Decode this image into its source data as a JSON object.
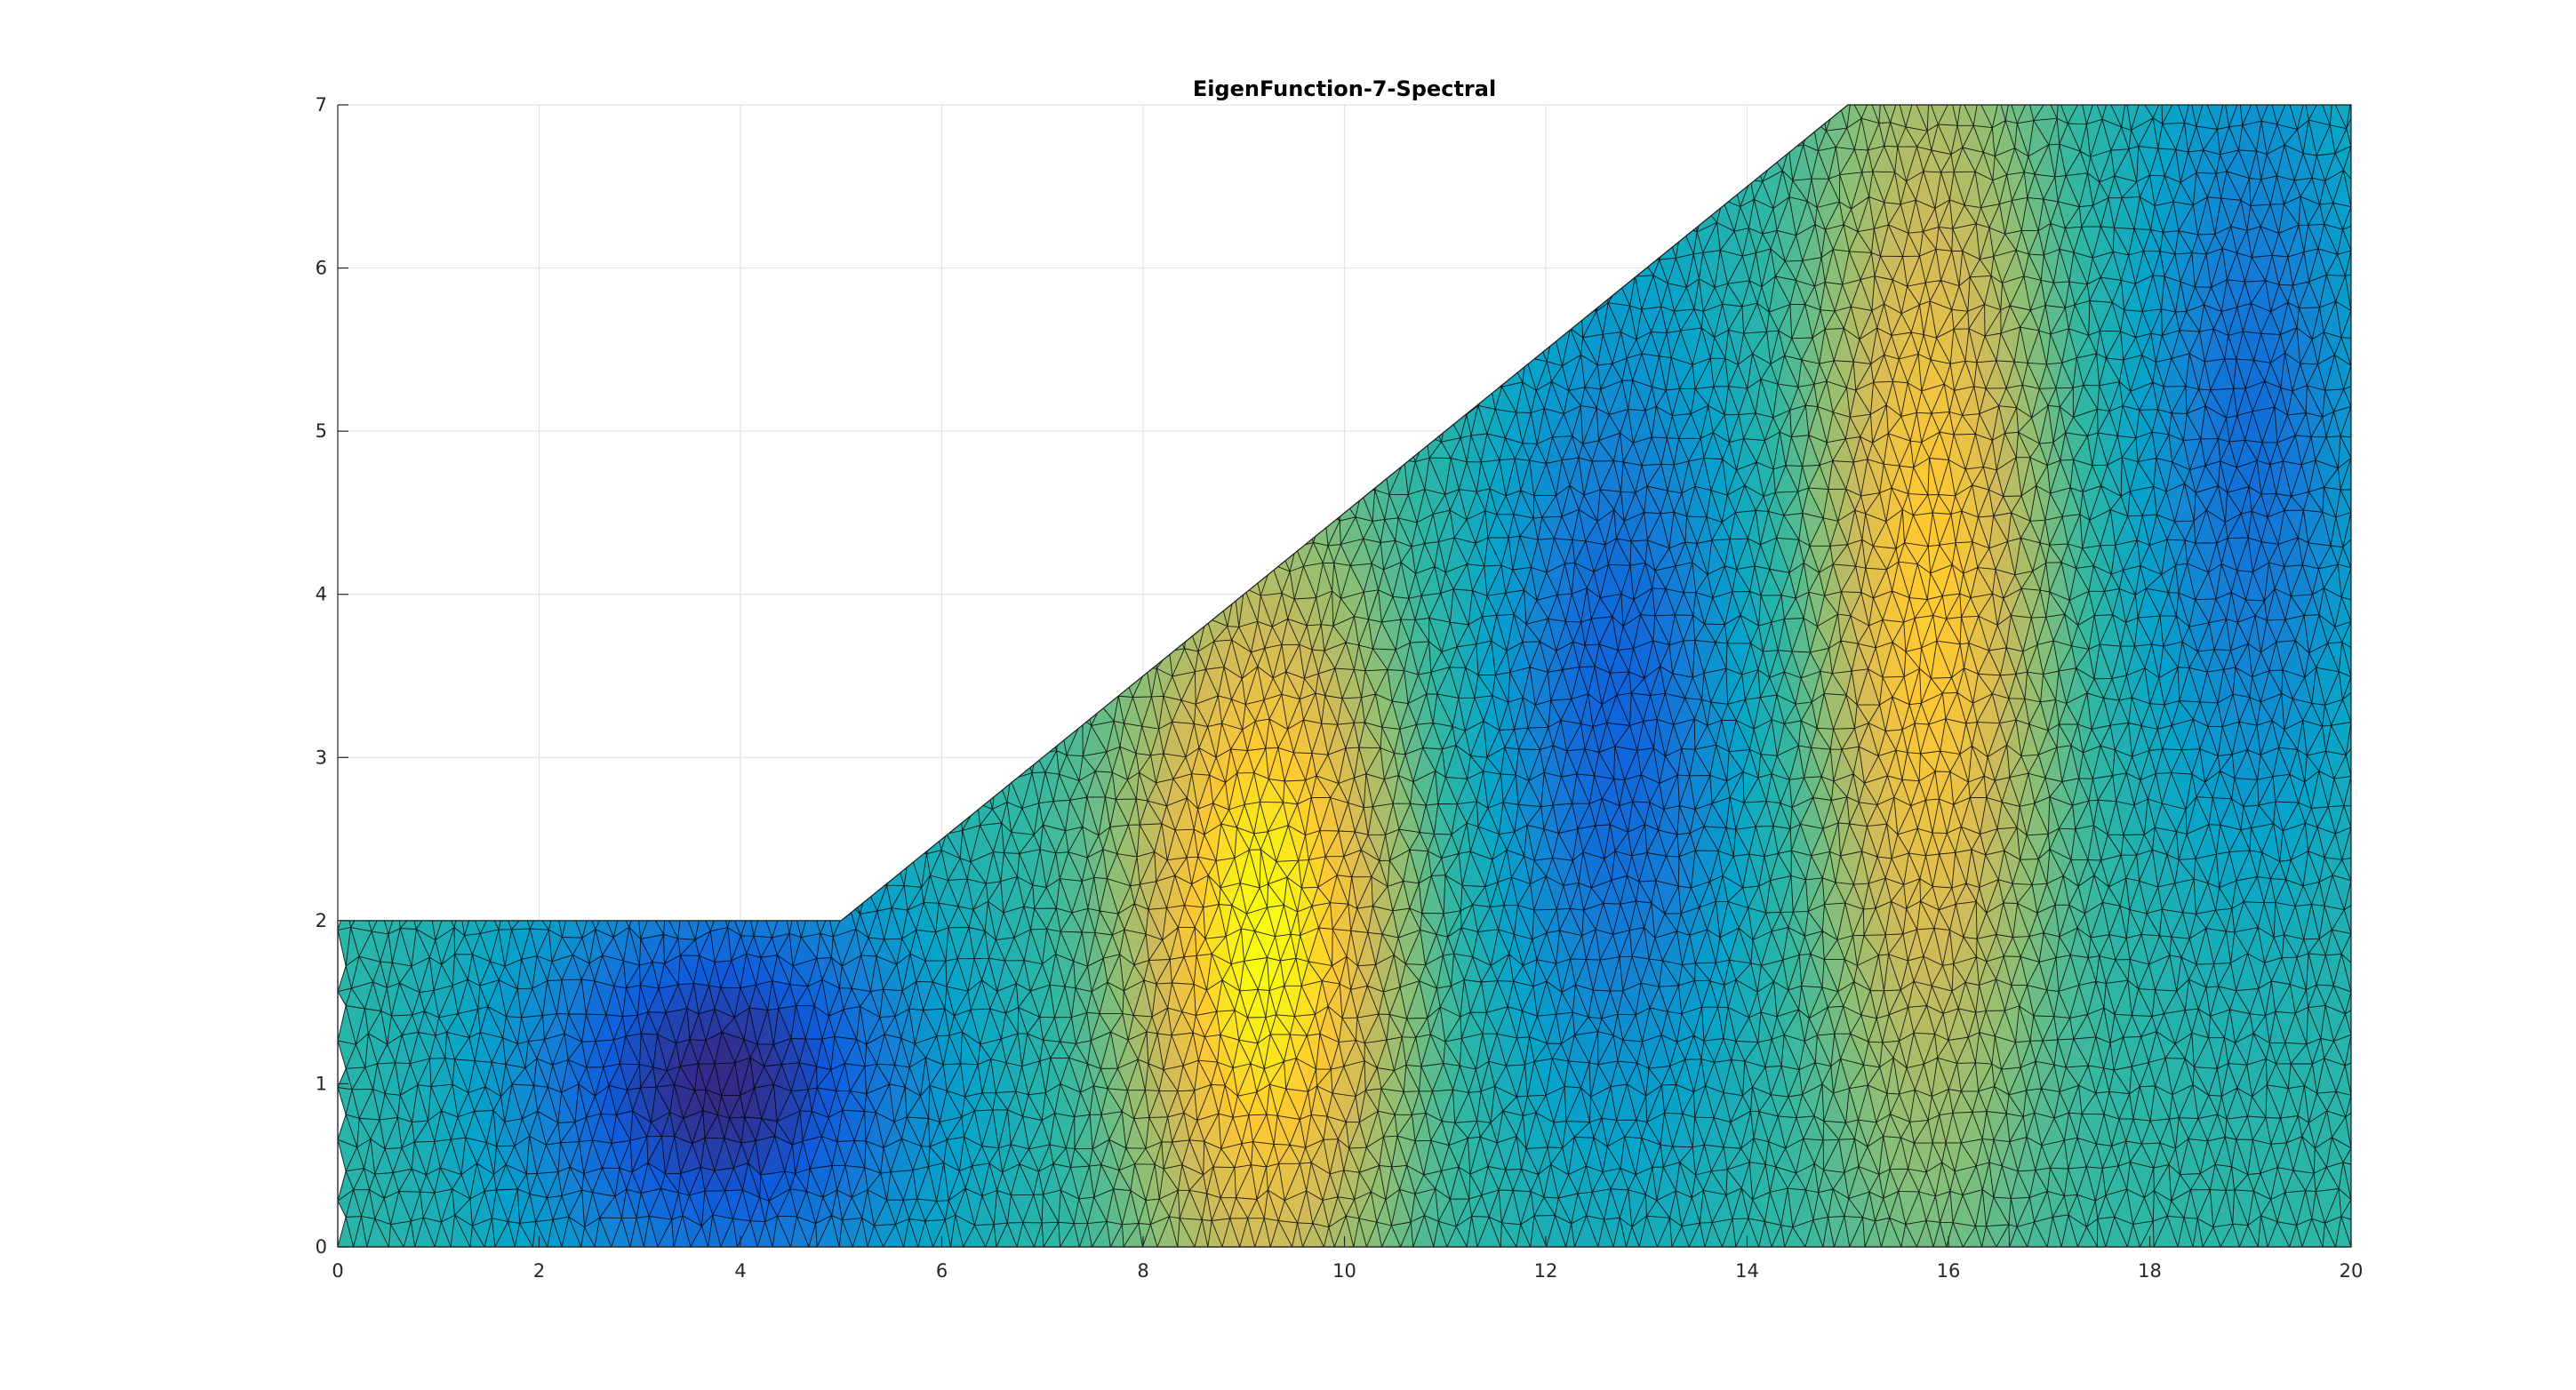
{
  "chart_data": {
    "type": "heatmap",
    "title": "EigenFunction-7-Spectral",
    "xlabel": "",
    "ylabel": "",
    "xlim": [
      0,
      20
    ],
    "ylim": [
      0,
      7
    ],
    "x_ticks": [
      0,
      2,
      4,
      6,
      8,
      10,
      12,
      14,
      16,
      18,
      20
    ],
    "y_ticks": [
      0,
      1,
      2,
      3,
      4,
      5,
      6,
      7
    ],
    "x_tick_labels": [
      "0",
      "2",
      "4",
      "6",
      "8",
      "10",
      "12",
      "14",
      "16",
      "18",
      "20"
    ],
    "y_tick_labels": [
      "0",
      "1",
      "2",
      "3",
      "4",
      "5",
      "6",
      "7"
    ],
    "grid": true,
    "colormap": "parula",
    "mesh": "triangular",
    "domain_polygon": [
      [
        0,
        0
      ],
      [
        20,
        0
      ],
      [
        20,
        7
      ],
      [
        15,
        7
      ],
      [
        5,
        2
      ],
      [
        0,
        2
      ]
    ],
    "extrema": [
      {
        "kind": "min",
        "x": 3.8,
        "y": 1.0
      },
      {
        "kind": "max",
        "x": 9.2,
        "y": 1.9
      },
      {
        "kind": "min",
        "x": 12.7,
        "y": 3.3
      },
      {
        "kind": "max",
        "x": 15.8,
        "y": 4.0
      },
      {
        "kind": "min",
        "x": 19.0,
        "y": 5.0
      }
    ]
  }
}
